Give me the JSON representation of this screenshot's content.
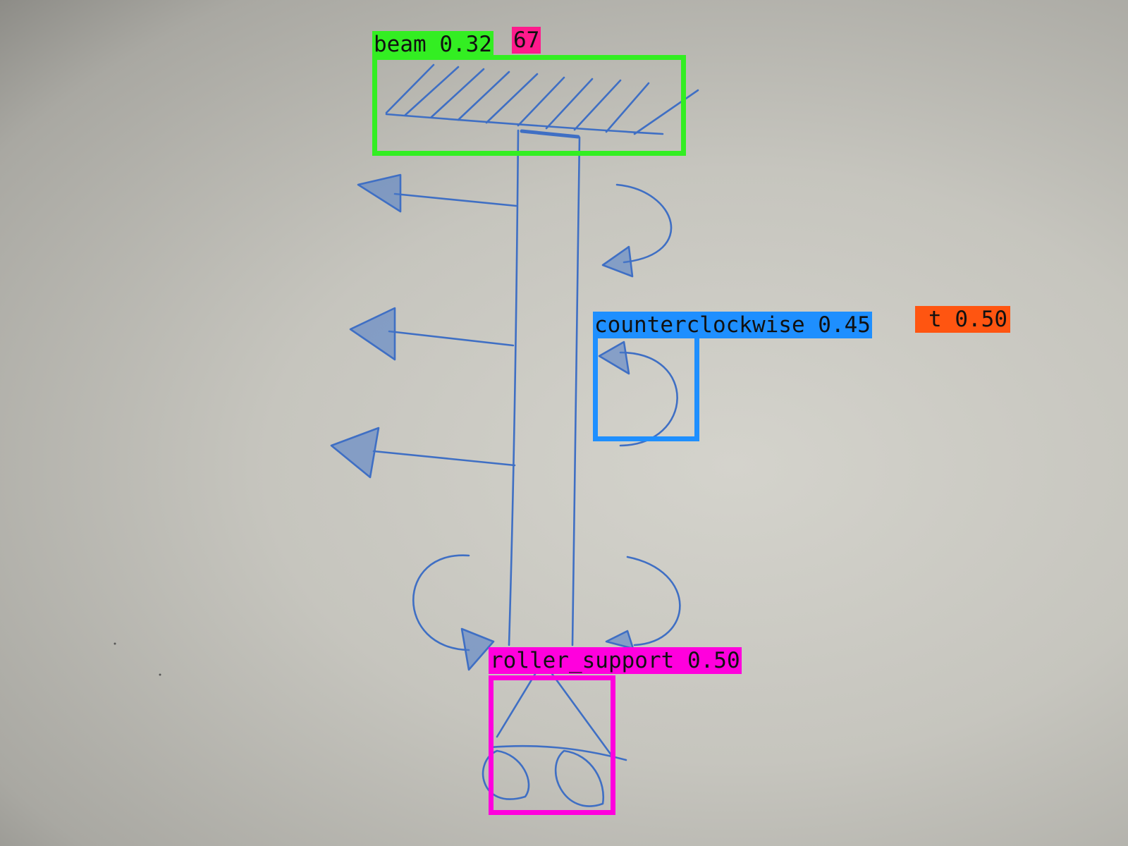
{
  "detections": [
    {
      "label": "beam 0.32",
      "color": "#33ee22"
    },
    {
      "label": "67",
      "color": "#ff1a8c"
    },
    {
      "label": "t 0.50",
      "color": "#ff5511"
    },
    {
      "label": "counterclockwise 0.45",
      "color": "#1e8fff"
    },
    {
      "label": "roller_support 0.50",
      "color": "#ff00dd"
    }
  ],
  "colors": {
    "ink": "#3f6fc4"
  }
}
